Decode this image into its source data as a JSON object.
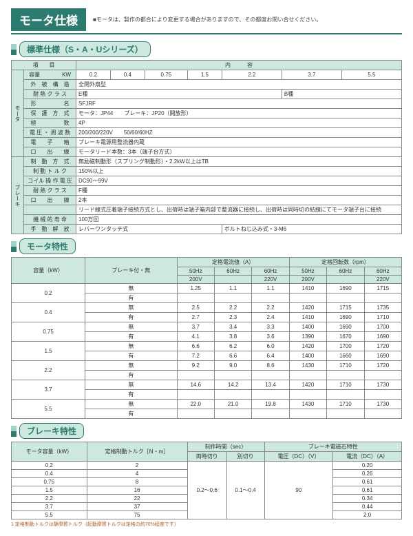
{
  "header": {
    "title": "モータ仕様",
    "note": "■モータは、製作の都合により変更する場合がありますので、その都度お問い合せください。"
  },
  "sec1": {
    "label": "標準仕様（S・A・Uシリーズ）",
    "head_item": "項　　目",
    "head_content": "内　　　容",
    "side_motor": "モータ",
    "side_brake": "ブレーキ",
    "kw_label": "容量　　　　KW",
    "kw_vals": [
      "0.2",
      "0.4",
      "0.75",
      "1.5",
      "2.2",
      "3.7",
      "5.5"
    ],
    "rows": [
      {
        "l": "外　被　構　造",
        "v": "全閉外扇型"
      },
      {
        "l": "耐 熱 ク ラ ス",
        "v1": "E種",
        "v2": "B種"
      },
      {
        "l": "形　　　　　名",
        "v": "SFJRF"
      },
      {
        "l": "保　護　方　式",
        "v": "モータ：JP44　　ブレーキ：JP20（開放形）"
      },
      {
        "l": "極　　　　　数",
        "v": "4P"
      },
      {
        "l": "電 圧 ・ 周 波 数",
        "v": "200/200/220V　　50/60/60HZ"
      },
      {
        "l": "電　　子　　箱",
        "v": "ブレーキ電源用整流器内蔵"
      },
      {
        "l": "口　　出　　線",
        "v": "モータリード本数：3本（端子台方式）"
      },
      {
        "l": "制　動　方　式",
        "v": "無励磁制動形（スプリング制動形）・2.2kW以上はTB"
      },
      {
        "l": "制 動 ト ル ク",
        "v": "150%以上"
      },
      {
        "l": "コイル 操 作 電 圧",
        "v": "DC90～99V"
      },
      {
        "l": "耐 熱 ク ラ ス",
        "v": "F種"
      },
      {
        "l": "口　　出　　線",
        "v": "2本"
      },
      {
        "l": "",
        "v": "リード線式圧着端子接続方式とし、出荷時は端子箱内部で整流器に接続し、出荷時は同時切の結線にてモータ端子台に接続"
      },
      {
        "l": "機 械 的 寿 命",
        "v": "100万回"
      },
      {
        "l": "手　動　解　放",
        "v1": "レバーワンタッチ式",
        "v2": "ボルトねじ込み式・3-M6"
      }
    ]
  },
  "sec2": {
    "label": "モータ特性",
    "h_cap": "容量（kW）",
    "h_brake": "ブレーキ付・無",
    "h_amp": "定格電流値（A）",
    "h_rpm": "定格回転数（rpm）",
    "sub": [
      "50Hz",
      "60Hz",
      "60Hz",
      "50Hz",
      "60Hz",
      "60Hz"
    ],
    "volt": [
      "200V",
      "",
      "220V",
      "200V",
      "",
      "220V"
    ],
    "rows": [
      {
        "c": "0.2",
        "b": "無",
        "v": [
          "1.25",
          "1.1",
          "1.1",
          "1410",
          "1690",
          "1715"
        ]
      },
      {
        "c": "",
        "b": "有",
        "v": [
          "",
          "",
          "",
          "",
          "",
          ""
        ]
      },
      {
        "c": "0.4",
        "b": "無",
        "v": [
          "2.5",
          "2.2",
          "2.2",
          "1420",
          "1715",
          "1735"
        ]
      },
      {
        "c": "",
        "b": "有",
        "v": [
          "2.7",
          "2.3",
          "2.4",
          "1410",
          "1690",
          "1710"
        ]
      },
      {
        "c": "0.75",
        "b": "無",
        "v": [
          "3.7",
          "3.4",
          "3.3",
          "1400",
          "1690",
          "1700"
        ]
      },
      {
        "c": "",
        "b": "有",
        "v": [
          "4.1",
          "3.8",
          "3.6",
          "1390",
          "1670",
          "1690"
        ]
      },
      {
        "c": "1.5",
        "b": "無",
        "v": [
          "6.6",
          "6.2",
          "6.0",
          "1420",
          "1700",
          "1720"
        ]
      },
      {
        "c": "",
        "b": "有",
        "v": [
          "7.2",
          "6.6",
          "6.4",
          "1400",
          "1660",
          "1690"
        ]
      },
      {
        "c": "2.2",
        "b": "無",
        "v": [
          "9.2",
          "9.0",
          "8.6",
          "1430",
          "1710",
          "1720"
        ]
      },
      {
        "c": "",
        "b": "有",
        "v": [
          "",
          "",
          "",
          "",
          "",
          ""
        ]
      },
      {
        "c": "3.7",
        "b": "無",
        "v": [
          "14.6",
          "14.2",
          "13.4",
          "1420",
          "1710",
          "1730"
        ]
      },
      {
        "c": "",
        "b": "有",
        "v": [
          "",
          "",
          "",
          "",
          "",
          ""
        ]
      },
      {
        "c": "5.5",
        "b": "無",
        "v": [
          "22.0",
          "21.0",
          "19.8",
          "1430",
          "1710",
          "1730"
        ]
      },
      {
        "c": "",
        "b": "有",
        "v": [
          "",
          "",
          "",
          "",
          "",
          ""
        ]
      }
    ]
  },
  "sec3": {
    "label": "ブレーキ特性",
    "h_cap": "モータ容量（kW）",
    "h_tq": "定格制動トルク［N・m］",
    "h_time": "制作時間（sec）",
    "h_mag": "ブレーキ電磁石特性",
    "h_t1": "両時切り",
    "h_t2": "別切り",
    "h_v": "電圧（DC）（V）",
    "h_a": "電流（DC）（A）",
    "rows": [
      {
        "c": "0.2",
        "t": "2",
        "a": "0.20"
      },
      {
        "c": "0.4",
        "t": "4",
        "a": "0.26"
      },
      {
        "c": "0.75",
        "t": "8",
        "a": "0.61"
      },
      {
        "c": "1.5",
        "t": "16",
        "a": "0.61"
      },
      {
        "c": "2.2",
        "t": "22",
        "a": "0.34"
      },
      {
        "c": "3.7",
        "t": "37",
        "a": "0.44"
      },
      {
        "c": "5.5",
        "t": "75",
        "a": "2.0"
      }
    ],
    "merge_t1": "0.2～0.6",
    "merge_t2": "0.1～0.4",
    "merge_v": "90",
    "foot": "1 定格制動トルクは静摩擦トルク（起動摩擦トルクは定格の約70%程度です）"
  }
}
